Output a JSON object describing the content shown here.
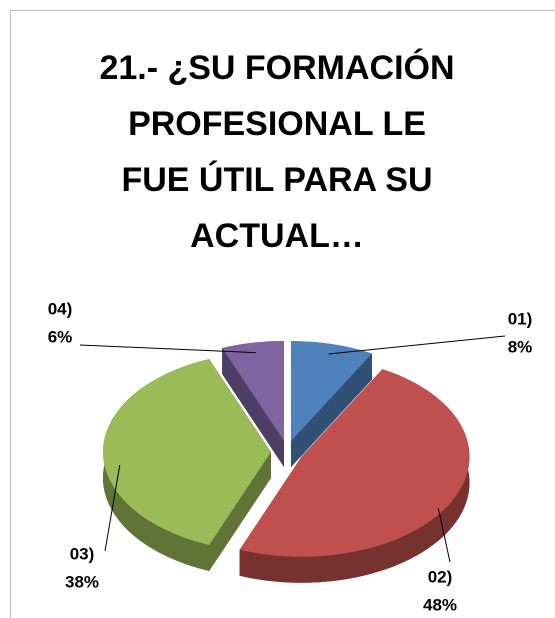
{
  "chart_data": {
    "type": "pie",
    "title": "21.- ¿SU FORMACIÓN PROFESIONAL LE FUE ÚTIL PARA SU ACTUAL…",
    "categories": [
      "01)",
      "02)",
      "03)",
      "04)"
    ],
    "values": [
      8,
      48,
      38,
      6
    ],
    "value_labels": [
      "8%",
      "48%",
      "38%",
      "6%"
    ],
    "colors": [
      "#4f81bd",
      "#c0504d",
      "#9bbb59",
      "#8064a2"
    ]
  }
}
